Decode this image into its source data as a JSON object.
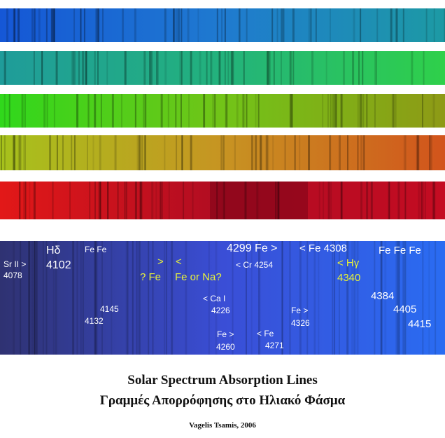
{
  "colors": {
    "background": "#ffffff",
    "label_white": "#ffffff",
    "label_yellow": "#e8f23a",
    "strip_1": [
      "#1557d6",
      "#1f7ad0",
      "#1d9aa4"
    ],
    "strip_2": [
      "#1f9c9a",
      "#23b27c",
      "#2fd04a"
    ],
    "strip_3": [
      "#30d81c",
      "#72c418",
      "#8e9a16"
    ],
    "strip_4": [
      "#a6c21c",
      "#c79422",
      "#d2541c"
    ],
    "strip_5": [
      "#e21818",
      "#b00c22",
      "#c40c22"
    ],
    "panel": [
      "#2f3272",
      "#3a4ed6",
      "#2a6cf2"
    ]
  },
  "spectrum_strips": [
    {
      "name": "blue-band"
    },
    {
      "name": "cyan-green-band"
    },
    {
      "name": "green-olive-band"
    },
    {
      "name": "yellow-orange-band"
    },
    {
      "name": "red-band"
    }
  ],
  "labels": {
    "sr": "Sr II >",
    "sr_wl": "4078",
    "hd": "Hδ",
    "hd_wl": "4102",
    "fe_fe": "Fe Fe",
    "fe4145": "4145",
    "fe4132": "4132",
    "arrow_right": ">",
    "arrow_left": "<",
    "q_fe": "? Fe",
    "fe_or_na": "Fe or Na?",
    "fe4299": "4299 Fe >",
    "cr4254": "< Cr 4254",
    "ca": "< Ca I",
    "ca_wl": "4226",
    "fe4260_t": "Fe  >",
    "fe4260": "4260",
    "fe4271_t": "< Fe",
    "fe4271": "4271",
    "fe4308": "< Fe 4308",
    "fe4326_t": "Fe  >",
    "fe4326": "4326",
    "hg": "<  Hγ",
    "hg_wl": "4340",
    "fe_triple": "Fe   Fe Fe",
    "w4384": "4384",
    "w4405": "4405",
    "w4415": "4415"
  },
  "title_en": "Solar Spectrum Absorption Lines",
  "title_gr": "Γραμμές Απορρόφησης στο Ηλιακό Φάσμα",
  "credit": "Vagelis Tsamis, 2006"
}
